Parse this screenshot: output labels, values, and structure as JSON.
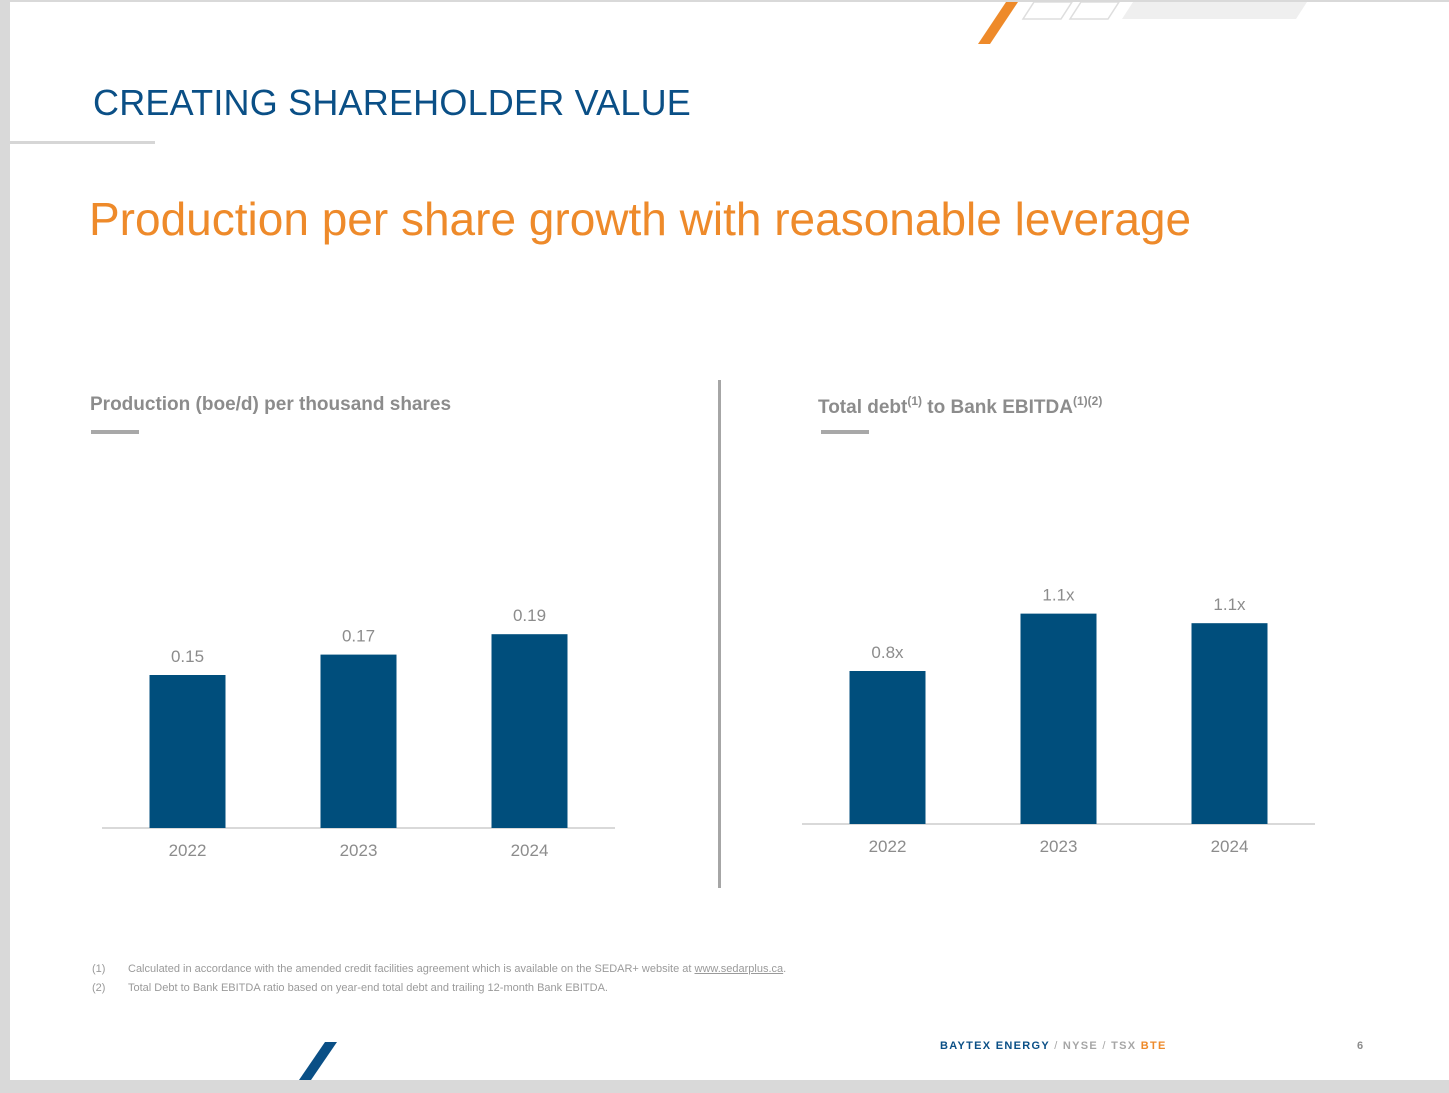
{
  "header": {
    "section_title": "CREATING SHAREHOLDER VALUE"
  },
  "headline": "Production per share growth with reasonable leverage",
  "left_panel": {
    "title": "Production (boe/d) per thousand shares"
  },
  "right_panel": {
    "title_part1": "Total debt",
    "sup1": "(1)",
    "title_part2": " to Bank EBITDA",
    "sup2": "(1)(2)"
  },
  "chart_data": [
    {
      "type": "bar",
      "title": "Production (boe/d) per thousand shares",
      "categories": [
        "2022",
        "2023",
        "2024"
      ],
      "values": [
        0.15,
        0.17,
        0.19
      ],
      "labels": [
        "0.15",
        "0.17",
        "0.19"
      ],
      "ylim": [
        0,
        0.3
      ],
      "grid": false,
      "bar_color": "#004e7c"
    },
    {
      "type": "bar",
      "title": "Total debt(1) to Bank EBITDA(1)(2)",
      "categories": [
        "2022",
        "2023",
        "2024"
      ],
      "values": [
        0.8,
        1.1,
        1.05
      ],
      "labels": [
        "0.8x",
        "1.1x",
        "1.1x"
      ],
      "ylim": [
        0,
        1.6
      ],
      "grid": false,
      "bar_color": "#004e7c"
    }
  ],
  "footnotes": [
    {
      "num": "(1)",
      "text": "Calculated in accordance with the amended credit facilities agreement which is available on the SEDAR+ website at ",
      "link": "www.sedarplus.ca",
      "tail": "."
    },
    {
      "num": "(2)",
      "text": "Total Debt to Bank EBITDA ratio based on year-end total debt and trailing 12-month Bank EBITDA.",
      "link": "",
      "tail": ""
    }
  ],
  "footer": {
    "company": "BAYTEX ENERGY",
    "sep": "/",
    "exchange1": "NYSE",
    "exchange2": "TSX",
    "ticker": "BTE",
    "page": "6"
  },
  "colors": {
    "navy": "#0a4f86",
    "orange": "#ee8a2a",
    "bar": "#004e7c",
    "gray": "#8c8c8c"
  }
}
